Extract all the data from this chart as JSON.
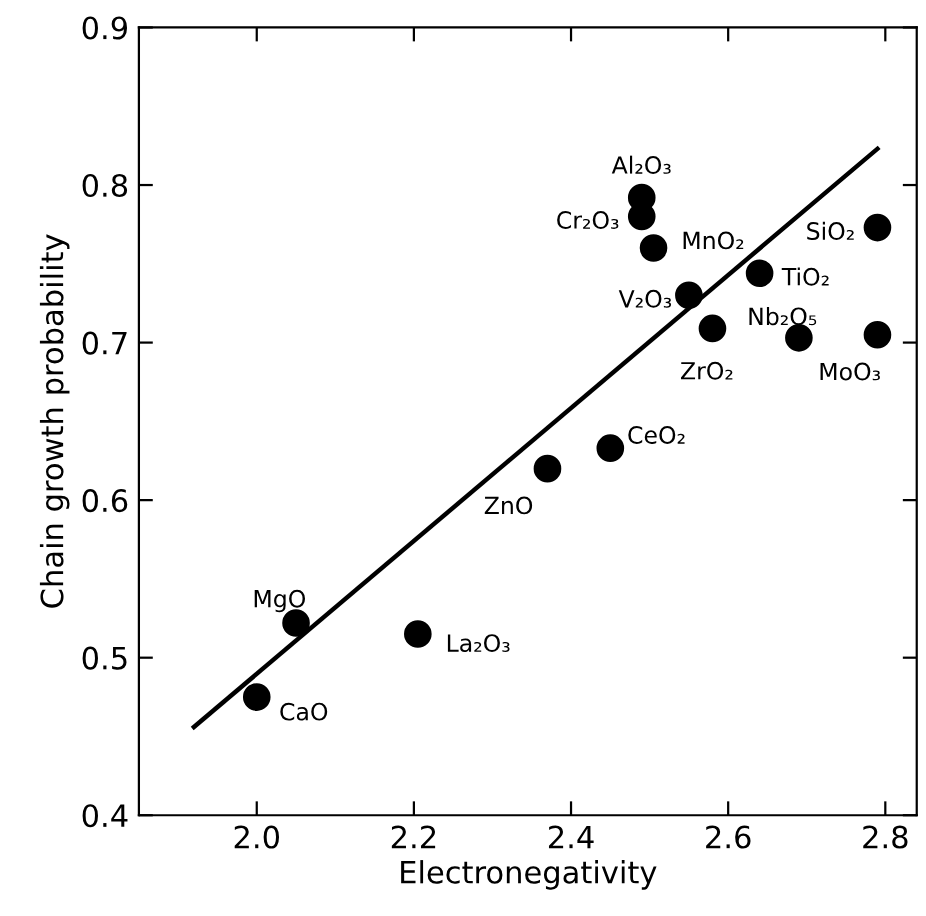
{
  "chart_data": {
    "type": "scatter",
    "xlabel": "Electronegativity",
    "ylabel": "Chain growth probability",
    "xlim": [
      1.85,
      2.84
    ],
    "ylim": [
      0.4,
      0.9
    ],
    "xticks": [
      {
        "value": 2.0,
        "label": "2.0"
      },
      2.2,
      2.4,
      2.6,
      2.8
    ],
    "yticks": [
      0.4,
      0.5,
      0.6,
      0.7,
      0.8,
      0.9
    ],
    "grid": false,
    "legend": false,
    "marker": "circle",
    "series": [
      {
        "color": "#000000",
        "x": [
          2.0,
          2.05,
          2.205,
          2.37,
          2.45,
          2.49,
          2.49,
          2.505,
          2.55,
          2.58,
          2.64,
          2.69,
          2.79,
          2.79
        ],
        "values": [
          0.475,
          0.522,
          0.515,
          0.62,
          0.633,
          0.792,
          0.78,
          0.76,
          0.73,
          0.709,
          0.744,
          0.703,
          0.705,
          0.773
        ]
      },
      {
        "type": "line",
        "color": "#000000",
        "line_style": "solid",
        "marker": "none",
        "x": [
          1.92,
          2.79
        ],
        "values": [
          0.456,
          0.823
        ]
      }
    ],
    "annotations": [
      {
        "text": "CaO",
        "x": 2.0,
        "y": 0.475
      },
      {
        "text": "MgO",
        "x": 2.05,
        "y": 0.522
      },
      {
        "text": "La₂O₃",
        "x": 2.205,
        "y": 0.515
      },
      {
        "text": "ZnO",
        "x": 2.37,
        "y": 0.62
      },
      {
        "text": "CeO₂",
        "x": 2.45,
        "y": 0.633
      },
      {
        "text": "Al₂O₃",
        "x": 2.49,
        "y": 0.792
      },
      {
        "text": "Cr₂O₃",
        "x": 2.49,
        "y": 0.78
      },
      {
        "text": "MnO₂",
        "x": 2.505,
        "y": 0.76
      },
      {
        "text": "V₂O₃",
        "x": 2.55,
        "y": 0.73
      },
      {
        "text": "ZrO₂",
        "x": 2.58,
        "y": 0.709
      },
      {
        "text": "TiO₂",
        "x": 2.64,
        "y": 0.744
      },
      {
        "text": "Nb₂O₅",
        "x": 2.69,
        "y": 0.703
      },
      {
        "text": "MoO₃",
        "x": 2.79,
        "y": 0.705
      },
      {
        "text": "SiO₂",
        "x": 2.79,
        "y": 0.773
      }
    ]
  }
}
